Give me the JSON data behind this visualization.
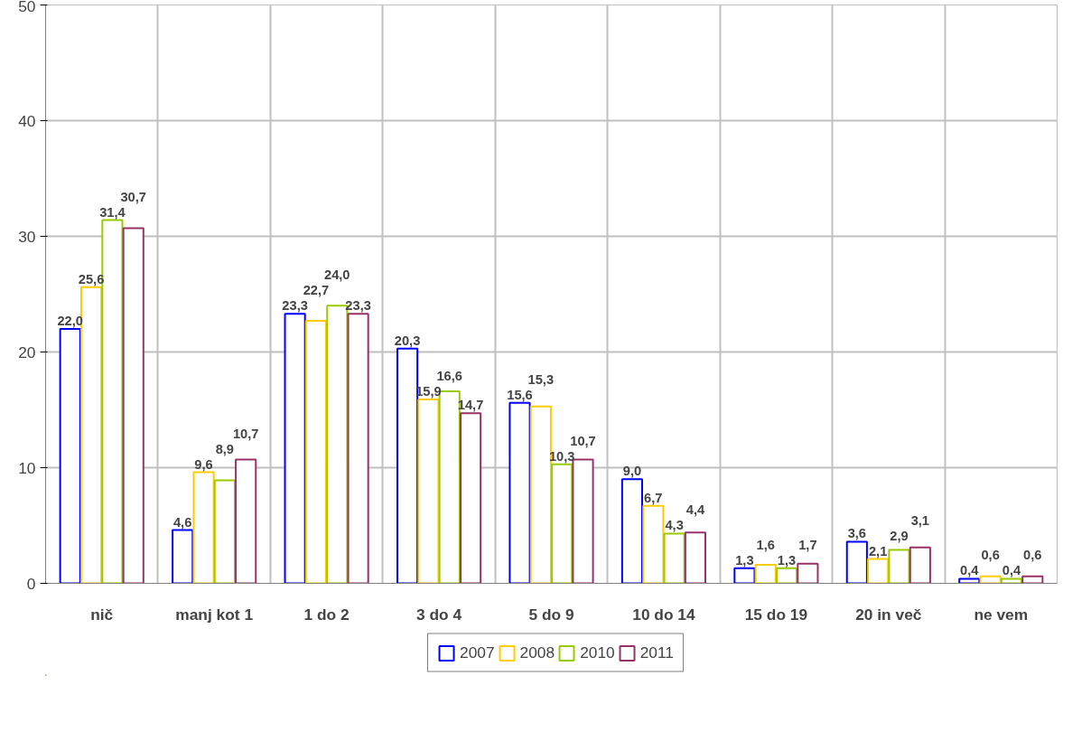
{
  "chart_data": {
    "type": "bar",
    "categories": [
      "nič",
      "manj kot 1",
      "1 do 2",
      "3 do 4",
      "5 do 9",
      "10 do 14",
      "15 do 19",
      "20 in več",
      "ne vem"
    ],
    "series": [
      {
        "name": "2007",
        "color": "#0000ff",
        "values": [
          22.0,
          4.6,
          23.3,
          20.3,
          15.6,
          9.0,
          1.3,
          3.6,
          0.4
        ],
        "value_labels": [
          "22,0",
          "4,6",
          "23,3",
          "20,3",
          "15,6",
          "9,0",
          "1,3",
          "3,6",
          "0,4"
        ]
      },
      {
        "name": "2008",
        "color": "#ffcc00",
        "values": [
          25.6,
          9.6,
          22.7,
          15.9,
          15.3,
          6.7,
          1.6,
          2.1,
          0.6
        ],
        "value_labels": [
          "25,6",
          "9,6",
          "22,7",
          "15,9",
          "15,3",
          "6,7",
          "1,6",
          "2,1",
          "0,6"
        ]
      },
      {
        "name": "2010",
        "color": "#99cc00",
        "values": [
          31.4,
          8.9,
          24.0,
          16.6,
          10.3,
          4.3,
          1.3,
          2.9,
          0.4
        ],
        "value_labels": [
          "31,4",
          "8,9",
          "24,0",
          "16,6",
          "10,3",
          "4,3",
          "1,3",
          "2,9",
          "0,4"
        ]
      },
      {
        "name": "2011",
        "color": "#993366",
        "values": [
          30.7,
          10.7,
          23.3,
          14.7,
          10.7,
          4.4,
          1.7,
          3.1,
          0.6
        ],
        "value_labels": [
          "30,7",
          "10,7",
          "23,3",
          "14,7",
          "10,7",
          "4,4",
          "1,7",
          "3,1",
          "0,6"
        ]
      }
    ],
    "ylim": [
      0,
      50
    ],
    "yticks": [
      0,
      10,
      20,
      30,
      40,
      50
    ],
    "grid": true,
    "legend": "bottom"
  }
}
